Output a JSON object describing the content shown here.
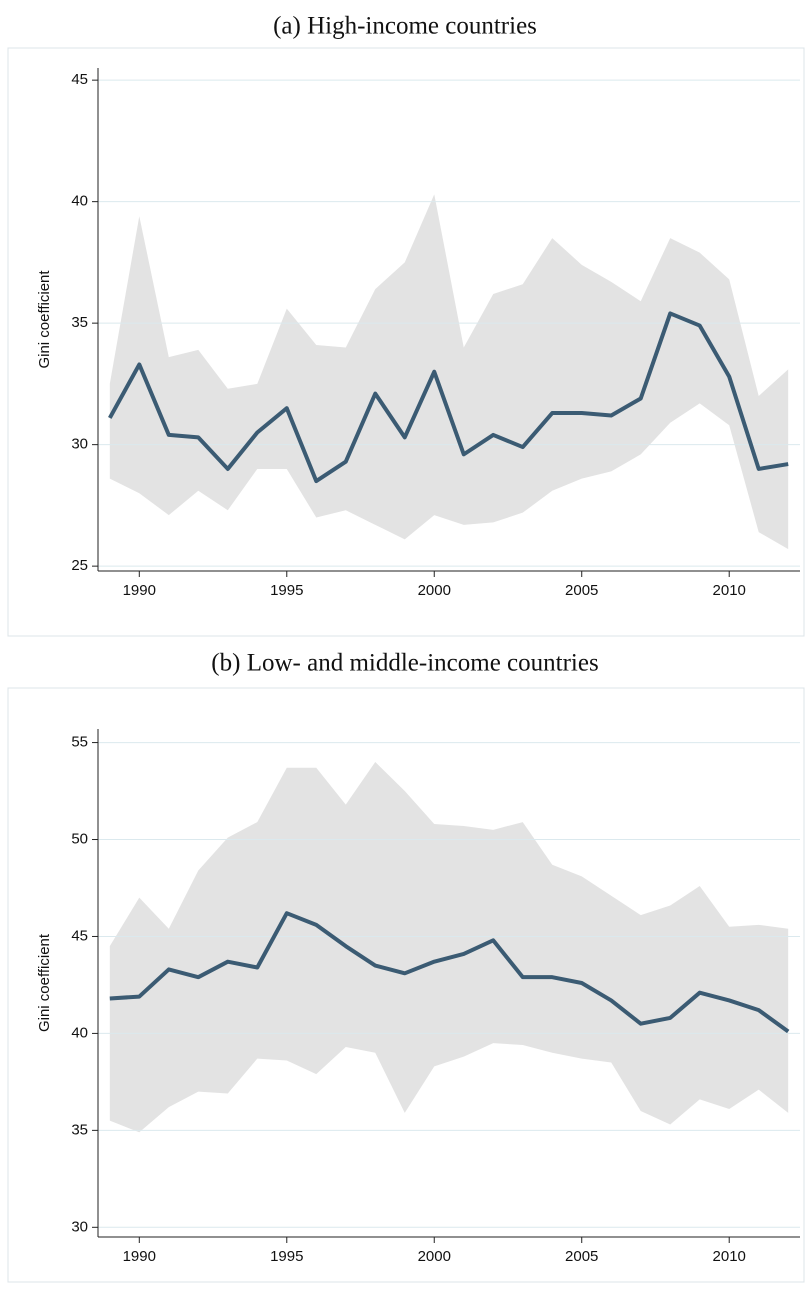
{
  "chart_data": [
    {
      "type": "line",
      "title": "(a)  High-income countries",
      "y_label": "Gini coefficient",
      "x": [
        1989,
        1990,
        1991,
        1992,
        1993,
        1994,
        1995,
        1996,
        1997,
        1998,
        1999,
        2000,
        2001,
        2002,
        2003,
        2004,
        2005,
        2006,
        2007,
        2008,
        2009,
        2010,
        2011,
        2012
      ],
      "values": [
        31.1,
        33.3,
        30.4,
        30.3,
        29.0,
        30.5,
        31.5,
        28.5,
        29.3,
        32.1,
        30.3,
        33.0,
        29.6,
        30.4,
        29.9,
        31.3,
        31.3,
        31.2,
        31.9,
        35.4,
        34.9,
        32.8,
        29.0,
        29.2
      ],
      "upper": [
        32.5,
        39.4,
        33.6,
        33.9,
        32.3,
        32.5,
        35.6,
        34.1,
        34.0,
        36.4,
        37.5,
        40.3,
        34.0,
        36.2,
        36.6,
        38.5,
        37.4,
        36.7,
        35.9,
        38.5,
        37.9,
        36.8,
        32.0,
        33.1
      ],
      "lower": [
        28.6,
        28.0,
        27.1,
        28.1,
        27.3,
        29.0,
        29.0,
        27.0,
        27.3,
        26.7,
        26.1,
        27.1,
        26.7,
        26.8,
        27.2,
        28.1,
        28.6,
        28.9,
        29.6,
        30.9,
        31.7,
        30.8,
        26.4,
        25.7
      ],
      "color": "#3b5b73",
      "band_color": "#e3e3e3",
      "xlim": [
        1988.6,
        2012.4
      ],
      "xticks": [
        1990,
        1995,
        2000,
        2005,
        2010
      ],
      "ylim": [
        24.8,
        45.5
      ],
      "yticks": [
        25,
        30,
        35,
        40,
        45
      ],
      "grid": true
    },
    {
      "type": "line",
      "title": "(b)  Low- and middle-income countries",
      "y_label": "Gini coefficient",
      "x": [
        1989,
        1990,
        1991,
        1992,
        1993,
        1994,
        1995,
        1996,
        1997,
        1998,
        1999,
        2000,
        2001,
        2002,
        2003,
        2004,
        2005,
        2006,
        2007,
        2008,
        2009,
        2010,
        2011,
        2012
      ],
      "values": [
        41.8,
        41.9,
        43.3,
        42.9,
        43.7,
        43.4,
        46.2,
        45.6,
        44.5,
        43.5,
        43.1,
        43.7,
        44.1,
        44.8,
        42.9,
        42.9,
        42.6,
        41.7,
        40.5,
        40.8,
        42.1,
        41.7,
        41.2,
        40.1
      ],
      "upper": [
        44.5,
        47.0,
        45.4,
        48.4,
        50.1,
        50.9,
        53.7,
        53.7,
        51.8,
        54.0,
        52.5,
        50.8,
        50.7,
        50.5,
        50.9,
        48.7,
        48.1,
        47.1,
        46.1,
        46.6,
        47.6,
        45.5,
        45.6,
        45.4
      ],
      "lower": [
        35.5,
        34.9,
        36.2,
        37.0,
        36.9,
        38.7,
        38.6,
        37.9,
        39.3,
        39.0,
        35.9,
        38.3,
        38.8,
        39.5,
        39.4,
        39.0,
        38.7,
        38.5,
        36.0,
        35.3,
        36.6,
        36.1,
        37.1,
        35.9
      ],
      "color": "#3b5b73",
      "band_color": "#e3e3e3",
      "xlim": [
        1988.6,
        2012.4
      ],
      "xticks": [
        1990,
        1995,
        2000,
        2005,
        2010
      ],
      "ylim": [
        29.5,
        55.7
      ],
      "yticks": [
        30,
        35,
        40,
        45,
        50,
        55
      ],
      "grid": true
    }
  ]
}
